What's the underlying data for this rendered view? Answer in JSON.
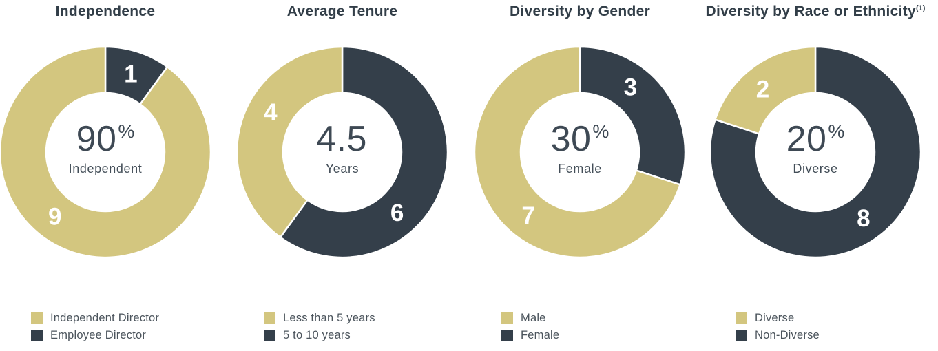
{
  "page": {
    "background": "#ffffff"
  },
  "colors": {
    "gold": "#d3c67f",
    "slate": "#343f4a",
    "title_text": "#323e48",
    "center_text": "#3e4954",
    "legend_text": "#4b545c",
    "separator": "#ffffff",
    "slice_label_text": "#ffffff"
  },
  "chart_data": [
    {
      "type": "pie",
      "title": "Independence",
      "title_sup": "",
      "center_value": "90",
      "center_suffix": "%",
      "center_label": "Independent",
      "total": 10,
      "slices": [
        {
          "name": "Employee Director",
          "value": 1,
          "display": "1",
          "color": "#343f4a"
        },
        {
          "name": "Independent Director",
          "value": 9,
          "display": "9",
          "color": "#d3c67f"
        }
      ],
      "legend": [
        {
          "label": "Independent Director",
          "color": "#d3c67f"
        },
        {
          "label": "Employee Director",
          "color": "#343f4a"
        }
      ]
    },
    {
      "type": "pie",
      "title": "Average Tenure",
      "title_sup": "",
      "center_value": "4.5",
      "center_suffix": "",
      "center_label": "Years",
      "total": 10,
      "slices": [
        {
          "name": "5 to 10 years",
          "value": 6,
          "display": "6",
          "color": "#343f4a"
        },
        {
          "name": "Less than 5 years",
          "value": 4,
          "display": "4",
          "color": "#d3c67f"
        }
      ],
      "legend": [
        {
          "label": "Less than 5 years",
          "color": "#d3c67f"
        },
        {
          "label": "5 to 10 years",
          "color": "#343f4a"
        }
      ]
    },
    {
      "type": "pie",
      "title": "Diversity by Gender",
      "title_sup": "",
      "center_value": "30",
      "center_suffix": "%",
      "center_label": "Female",
      "total": 10,
      "slices": [
        {
          "name": "Female",
          "value": 3,
          "display": "3",
          "color": "#343f4a"
        },
        {
          "name": "Male",
          "value": 7,
          "display": "7",
          "color": "#d3c67f"
        }
      ],
      "legend": [
        {
          "label": "Male",
          "color": "#d3c67f"
        },
        {
          "label": "Female",
          "color": "#343f4a"
        }
      ]
    },
    {
      "type": "pie",
      "title": "Diversity by Race or Ethnicity",
      "title_sup": "(1)",
      "center_value": "20",
      "center_suffix": "%",
      "center_label": "Diverse",
      "total": 10,
      "slices": [
        {
          "name": "Non-Diverse",
          "value": 8,
          "display": "8",
          "color": "#343f4a"
        },
        {
          "name": "Diverse",
          "value": 2,
          "display": "2",
          "color": "#d3c67f"
        }
      ],
      "legend": [
        {
          "label": "Diverse",
          "color": "#d3c67f"
        },
        {
          "label": "Non-Diverse",
          "color": "#343f4a"
        }
      ]
    }
  ]
}
